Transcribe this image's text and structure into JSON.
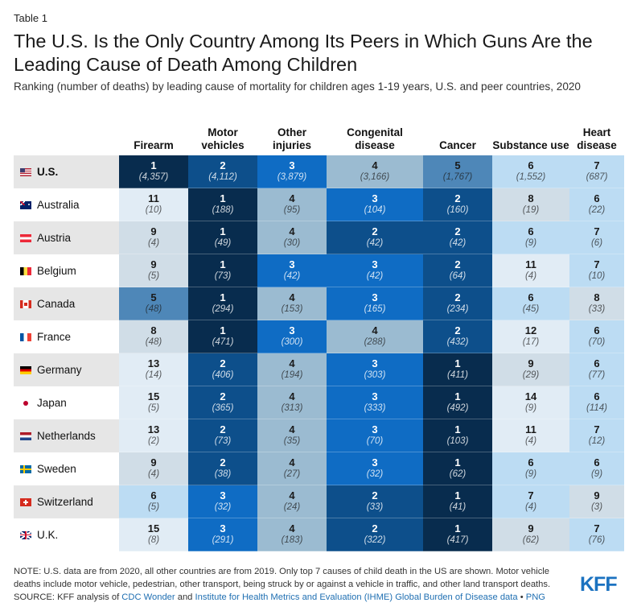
{
  "table_label": "Table 1",
  "title": "The U.S. Is the Only Country Among Its Peers in Which Guns Are the Leading Cause of Death Among Children",
  "subtitle": "Ranking (number of deaths) by leading cause of mortality for children ages 1-19 years, U.S. and peer countries, 2020",
  "colors": {
    "rank1": "#082c4e",
    "rank2": "#0d4f8b",
    "rank3": "#0f6cc4",
    "rank4": "#9bbbd1",
    "rank5": "#4e87b8",
    "rank6_7": "#bcdcf3",
    "rank8_10": "#d0dde7",
    "rank11_plus": "#e1ecf5",
    "row_gray": "#e6e6e6",
    "link": "#1f6fb2",
    "brand": "#1b72c0"
  },
  "chart_data": {
    "type": "table",
    "columns": [
      "Firearm",
      "Motor vehicles",
      "Other injuries",
      "Congenital disease",
      "Cancer",
      "Substance use",
      "Heart disease"
    ],
    "rows": [
      {
        "country": "U.S.",
        "flag": "us-flag-icon",
        "ranks": [
          "1",
          "2",
          "3",
          "4",
          "5",
          "6",
          "7"
        ],
        "counts": [
          "(4,357)",
          "(4,112)",
          "(3,879)",
          "(3,166)",
          "(1,767)",
          "(1,552)",
          "(687)"
        ]
      },
      {
        "country": "Australia",
        "flag": "australia-flag-icon",
        "ranks": [
          "11",
          "1",
          "4",
          "3",
          "2",
          "8",
          "6"
        ],
        "counts": [
          "(10)",
          "(188)",
          "(95)",
          "(104)",
          "(160)",
          "(19)",
          "(22)"
        ]
      },
      {
        "country": "Austria",
        "flag": "austria-flag-icon",
        "ranks": [
          "9",
          "1",
          "4",
          "2",
          "2",
          "6",
          "7"
        ],
        "counts": [
          "(4)",
          "(49)",
          "(30)",
          "(42)",
          "(42)",
          "(9)",
          "(6)"
        ]
      },
      {
        "country": "Belgium",
        "flag": "belgium-flag-icon",
        "ranks": [
          "9",
          "1",
          "3",
          "3",
          "2",
          "11",
          "7"
        ],
        "counts": [
          "(5)",
          "(73)",
          "(42)",
          "(42)",
          "(64)",
          "(4)",
          "(10)"
        ]
      },
      {
        "country": "Canada",
        "flag": "canada-flag-icon",
        "ranks": [
          "5",
          "1",
          "4",
          "3",
          "2",
          "6",
          "8"
        ],
        "counts": [
          "(48)",
          "(294)",
          "(153)",
          "(165)",
          "(234)",
          "(45)",
          "(33)"
        ]
      },
      {
        "country": "France",
        "flag": "france-flag-icon",
        "ranks": [
          "8",
          "1",
          "3",
          "4",
          "2",
          "12",
          "6"
        ],
        "counts": [
          "(48)",
          "(471)",
          "(300)",
          "(288)",
          "(432)",
          "(17)",
          "(70)"
        ]
      },
      {
        "country": "Germany",
        "flag": "germany-flag-icon",
        "ranks": [
          "13",
          "2",
          "4",
          "3",
          "1",
          "9",
          "6"
        ],
        "counts": [
          "(14)",
          "(406)",
          "(194)",
          "(303)",
          "(411)",
          "(29)",
          "(77)"
        ]
      },
      {
        "country": "Japan",
        "flag": "japan-flag-icon",
        "ranks": [
          "15",
          "2",
          "4",
          "3",
          "1",
          "14",
          "6"
        ],
        "counts": [
          "(5)",
          "(365)",
          "(313)",
          "(333)",
          "(492)",
          "(9)",
          "(114)"
        ]
      },
      {
        "country": "Netherlands",
        "flag": "netherlands-flag-icon",
        "ranks": [
          "13",
          "2",
          "4",
          "3",
          "1",
          "11",
          "7"
        ],
        "counts": [
          "(2)",
          "(73)",
          "(35)",
          "(70)",
          "(103)",
          "(4)",
          "(12)"
        ]
      },
      {
        "country": "Sweden",
        "flag": "sweden-flag-icon",
        "ranks": [
          "9",
          "2",
          "4",
          "3",
          "1",
          "6",
          "6"
        ],
        "counts": [
          "(4)",
          "(38)",
          "(27)",
          "(32)",
          "(62)",
          "(9)",
          "(9)"
        ]
      },
      {
        "country": "Switzerland",
        "flag": "switzerland-flag-icon",
        "ranks": [
          "6",
          "3",
          "4",
          "2",
          "1",
          "7",
          "9"
        ],
        "counts": [
          "(5)",
          "(32)",
          "(24)",
          "(33)",
          "(41)",
          "(4)",
          "(3)"
        ]
      },
      {
        "country": "U.K.",
        "flag": "uk-flag-icon",
        "ranks": [
          "15",
          "3",
          "4",
          "2",
          "1",
          "9",
          "7"
        ],
        "counts": [
          "(8)",
          "(291)",
          "(183)",
          "(322)",
          "(417)",
          "(62)",
          "(76)"
        ]
      }
    ]
  },
  "note": {
    "line1": "NOTE: U.S. data are from 2020, all other countries are from 2019. Only top 7 causes of child death in the US are shown. Motor vehicle",
    "line2": "deaths include motor vehicle, pedestrian, other transport, being struck by or against a vehicle in traffic, and other land transport deaths.",
    "source_prefix": "SOURCE: KFF analysis of ",
    "link1": "CDC Wonder",
    "and": " and ",
    "link2": "Institute for Health Metrics and Evaluation (IHME) Global Burden of Disease data",
    "sep": " • ",
    "link3": "PNG"
  },
  "logo": "KFF"
}
